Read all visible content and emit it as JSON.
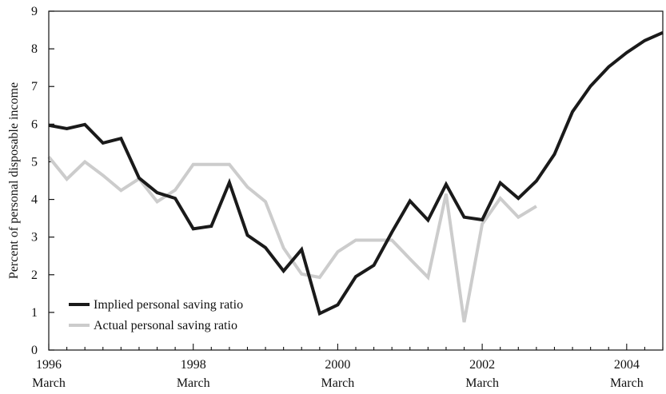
{
  "chart_data": {
    "type": "line",
    "ylabel": "Percent of personal disposable income",
    "xlabel": "",
    "ylim": [
      0,
      9
    ],
    "xlim": [
      1996.0,
      2004.5
    ],
    "y_ticks": [
      0,
      1,
      2,
      3,
      4,
      5,
      6,
      7,
      8,
      9
    ],
    "x_ticks": [
      {
        "x": 1996,
        "year": "1996",
        "month": "March"
      },
      {
        "x": 1998,
        "year": "1998",
        "month": "March"
      },
      {
        "x": 2000,
        "year": "2000",
        "month": "March"
      },
      {
        "x": 2002,
        "year": "2002",
        "month": "March"
      },
      {
        "x": 2004,
        "year": "2004",
        "month": "March"
      }
    ],
    "grid": false,
    "legend_position": "bottom-left",
    "series": [
      {
        "name": "Implied personal saving ratio",
        "color": "#1a1a1a",
        "points": [
          [
            1996.0,
            5.97
          ],
          [
            1996.25,
            5.88
          ],
          [
            1996.5,
            5.99
          ],
          [
            1996.75,
            5.5
          ],
          [
            1997.0,
            5.62
          ],
          [
            1997.25,
            4.57
          ],
          [
            1997.5,
            4.18
          ],
          [
            1997.75,
            4.03
          ],
          [
            1998.0,
            3.22
          ],
          [
            1998.25,
            3.29
          ],
          [
            1998.5,
            4.45
          ],
          [
            1998.75,
            3.05
          ],
          [
            1999.0,
            2.72
          ],
          [
            1999.25,
            2.1
          ],
          [
            1999.5,
            2.67
          ],
          [
            1999.75,
            0.97
          ],
          [
            2000.0,
            1.2
          ],
          [
            2000.25,
            1.95
          ],
          [
            2000.5,
            2.25
          ],
          [
            2000.75,
            3.13
          ],
          [
            2001.0,
            3.96
          ],
          [
            2001.25,
            3.45
          ],
          [
            2001.5,
            4.4
          ],
          [
            2001.75,
            3.53
          ],
          [
            2002.0,
            3.46
          ],
          [
            2002.25,
            4.44
          ],
          [
            2002.5,
            4.03
          ],
          [
            2002.75,
            4.49
          ],
          [
            2003.0,
            5.2
          ],
          [
            2003.25,
            6.33
          ],
          [
            2003.5,
            7.01
          ],
          [
            2003.75,
            7.52
          ],
          [
            2004.0,
            7.9
          ],
          [
            2004.25,
            8.22
          ],
          [
            2004.5,
            8.43
          ]
        ]
      },
      {
        "name": "Actual personal saving ratio",
        "color": "#cccccc",
        "points": [
          [
            1996.0,
            5.13
          ],
          [
            1996.25,
            4.54
          ],
          [
            1996.5,
            5.0
          ],
          [
            1996.75,
            4.64
          ],
          [
            1997.0,
            4.24
          ],
          [
            1997.25,
            4.55
          ],
          [
            1997.5,
            3.94
          ],
          [
            1997.75,
            4.25
          ],
          [
            1998.0,
            4.93
          ],
          [
            1998.25,
            4.93
          ],
          [
            1998.5,
            4.93
          ],
          [
            1998.75,
            4.33
          ],
          [
            1999.0,
            3.94
          ],
          [
            1999.25,
            2.71
          ],
          [
            1999.5,
            2.02
          ],
          [
            1999.75,
            1.93
          ],
          [
            2000.0,
            2.61
          ],
          [
            2000.25,
            2.92
          ],
          [
            2000.5,
            2.92
          ],
          [
            2000.75,
            2.92
          ],
          [
            2001.0,
            2.42
          ],
          [
            2001.25,
            1.93
          ],
          [
            2001.5,
            4.15
          ],
          [
            2001.75,
            0.74
          ],
          [
            2002.0,
            3.35
          ],
          [
            2002.25,
            4.03
          ],
          [
            2002.5,
            3.53
          ],
          [
            2002.75,
            3.82
          ]
        ]
      }
    ]
  }
}
